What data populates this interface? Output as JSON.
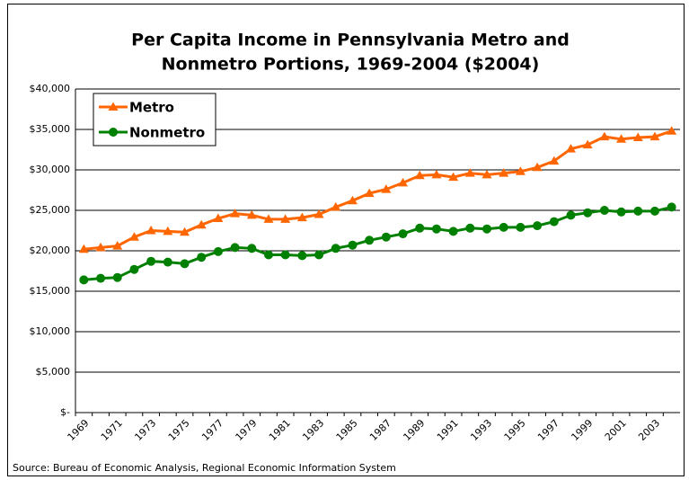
{
  "chart_data": {
    "type": "line",
    "title": [
      "Per Capita Income in Pennsylvania Metro and",
      "Nonmetro Portions, 1969-2004 ($2004)"
    ],
    "source": "Source: Bureau of Economic Analysis, Regional Economic Information System",
    "categories": [
      "1969",
      null,
      "1971",
      null,
      "1973",
      null,
      "1975",
      null,
      "1977",
      null,
      "1979",
      null,
      "1981",
      null,
      "1983",
      null,
      "1985",
      null,
      "1987",
      null,
      "1989",
      null,
      "1991",
      null,
      "1993",
      null,
      "1995",
      null,
      "1997",
      null,
      "1999",
      null,
      "2001",
      null,
      "2003",
      null
    ],
    "series": [
      {
        "name": "Metro",
        "color": "#ff6600",
        "marker": "triangle",
        "values": [
          20200,
          20400,
          20600,
          21700,
          22500,
          22400,
          22300,
          23200,
          24000,
          24600,
          24400,
          23900,
          23900,
          24100,
          24500,
          25400,
          26200,
          27100,
          27600,
          28400,
          29300,
          29400,
          29100,
          29600,
          29400,
          29600,
          29800,
          30300,
          31100,
          32600,
          33100,
          34100,
          33800,
          34000,
          34100,
          34800
        ]
      },
      {
        "name": "Nonmetro",
        "color": "#008000",
        "marker": "circle",
        "values": [
          16400,
          16600,
          16700,
          17700,
          18700,
          18600,
          18400,
          19200,
          19900,
          20400,
          20300,
          19500,
          19500,
          19400,
          19500,
          20300,
          20700,
          21300,
          21700,
          22100,
          22800,
          22700,
          22400,
          22800,
          22700,
          22900,
          22900,
          23100,
          23600,
          24400,
          24700,
          25000,
          24800,
          24900,
          24900,
          25400
        ]
      }
    ],
    "ylim": [
      0,
      40000
    ],
    "yticks": [
      {
        "value": 0,
        "label": "$-"
      },
      {
        "value": 5000,
        "label": "$5,000"
      },
      {
        "value": 10000,
        "label": "$10,000"
      },
      {
        "value": 15000,
        "label": "$15,000"
      },
      {
        "value": 20000,
        "label": "$20,000"
      },
      {
        "value": 25000,
        "label": "$25,000"
      },
      {
        "value": 30000,
        "label": "$30,000"
      },
      {
        "value": 35000,
        "label": "$35,000"
      },
      {
        "value": 40000,
        "label": "$40,000"
      }
    ],
    "grid": true,
    "legend": "upper left"
  }
}
